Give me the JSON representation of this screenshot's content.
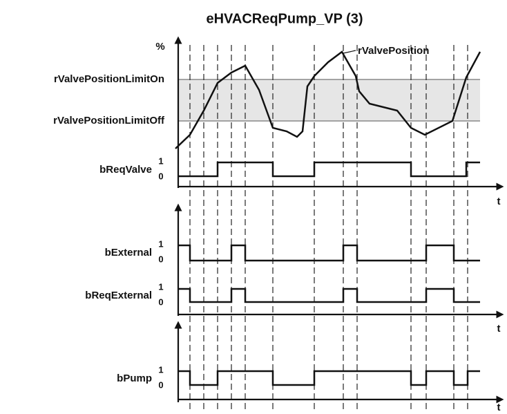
{
  "title": "eHVACReqPump_VP (3)",
  "analog": {
    "unit": "%",
    "curve_label": "rValvePosition",
    "limit_on": "rValvePositionLimitOn",
    "limit_off": "rValvePositionLimitOff"
  },
  "signals": [
    {
      "name": "bReqValve",
      "high": "1",
      "low": "0"
    },
    {
      "name": "bExternal",
      "high": "1",
      "low": "0"
    },
    {
      "name": "bReqExternal",
      "high": "1",
      "low": "0"
    },
    {
      "name": "bPump",
      "high": "1",
      "low": "0"
    }
  ],
  "time_axes": [
    "t",
    "t",
    "t"
  ]
}
